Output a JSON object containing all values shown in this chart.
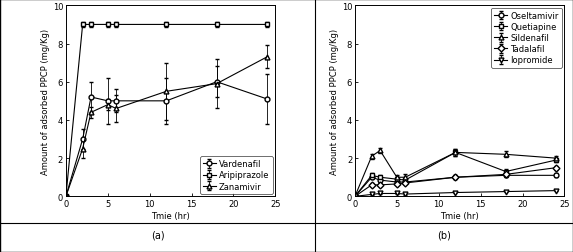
{
  "panel_a": {
    "x": [
      0,
      2,
      3,
      5,
      6,
      12,
      18,
      24
    ],
    "vardenafil": {
      "y": [
        0,
        3.0,
        5.2,
        5.0,
        5.0,
        5.0,
        6.0,
        5.1
      ],
      "yerr": [
        0,
        0.5,
        0.8,
        1.2,
        0.6,
        1.2,
        0.8,
        1.3
      ],
      "marker": "o",
      "label": "Vardenafil"
    },
    "aripiprazole": {
      "y": [
        0,
        9.0,
        9.0,
        9.0,
        9.0,
        9.0,
        9.0,
        9.0
      ],
      "yerr": [
        0,
        0.12,
        0.12,
        0.12,
        0.12,
        0.12,
        0.12,
        0.12
      ],
      "marker": "s",
      "label": "Aripiprazole"
    },
    "zanamivir": {
      "y": [
        0,
        2.5,
        4.4,
        4.8,
        4.6,
        5.5,
        5.9,
        7.3
      ],
      "yerr": [
        0,
        0.5,
        0.3,
        0.3,
        0.7,
        1.5,
        1.3,
        0.6
      ],
      "marker": "^",
      "label": "Zanamivir"
    },
    "xlabel": "Tmie (hr)",
    "ylabel": "Amount of adsorbed PPCP (mg/Kg)",
    "ylim": [
      0,
      10
    ],
    "xlim": [
      0,
      25
    ],
    "yticks": [
      0,
      2,
      4,
      6,
      8,
      10
    ],
    "xticks": [
      0,
      5,
      10,
      15,
      20,
      25
    ],
    "caption": "(a)"
  },
  "panel_b": {
    "x": [
      0,
      2,
      3,
      5,
      6,
      12,
      18,
      24
    ],
    "oseltamivir": {
      "y": [
        0,
        1.0,
        0.85,
        0.75,
        0.75,
        1.0,
        1.1,
        1.1
      ],
      "yerr": [
        0,
        0.08,
        0.08,
        0.08,
        0.08,
        0.1,
        0.1,
        0.1
      ],
      "marker": "o",
      "label": "Oseltamivir"
    },
    "quetiapine": {
      "y": [
        0,
        1.1,
        1.0,
        0.9,
        0.85,
        2.3,
        1.3,
        1.9
      ],
      "yerr": [
        0,
        0.1,
        0.12,
        0.12,
        0.12,
        0.18,
        0.15,
        0.12
      ],
      "marker": "s",
      "label": "Quetiapine"
    },
    "sildenafil": {
      "y": [
        0,
        2.1,
        2.4,
        1.0,
        1.0,
        2.3,
        2.2,
        2.0
      ],
      "yerr": [
        0,
        0.12,
        0.15,
        0.12,
        0.15,
        0.18,
        0.15,
        0.12
      ],
      "marker": "^",
      "label": "Sildenafil"
    },
    "tadalafil": {
      "y": [
        0,
        0.6,
        0.6,
        0.65,
        0.7,
        1.0,
        1.15,
        1.5
      ],
      "yerr": [
        0,
        0.08,
        0.08,
        0.08,
        0.08,
        0.1,
        0.08,
        0.1
      ],
      "marker": "D",
      "label": "Tadalafil"
    },
    "iopromide": {
      "y": [
        0,
        0.1,
        0.15,
        0.15,
        0.12,
        0.2,
        0.25,
        0.3
      ],
      "yerr": [
        0,
        0.04,
        0.04,
        0.04,
        0.04,
        0.04,
        0.04,
        0.04
      ],
      "marker": "v",
      "label": "Iopromide"
    },
    "xlabel": "Tmie (hr)",
    "ylabel": "Amount of adsorbed PPCP (mg/Kg)",
    "ylim": [
      0,
      10
    ],
    "xlim": [
      0,
      25
    ],
    "yticks": [
      0,
      2,
      4,
      6,
      8,
      10
    ],
    "xticks": [
      0,
      5,
      10,
      15,
      20,
      25
    ],
    "caption": "(b)"
  },
  "line_color": "#000000",
  "bg_color": "#ffffff",
  "font_size": 6.0,
  "marker_size": 3.5,
  "figsize": [
    5.73,
    2.53
  ],
  "dpi": 100
}
